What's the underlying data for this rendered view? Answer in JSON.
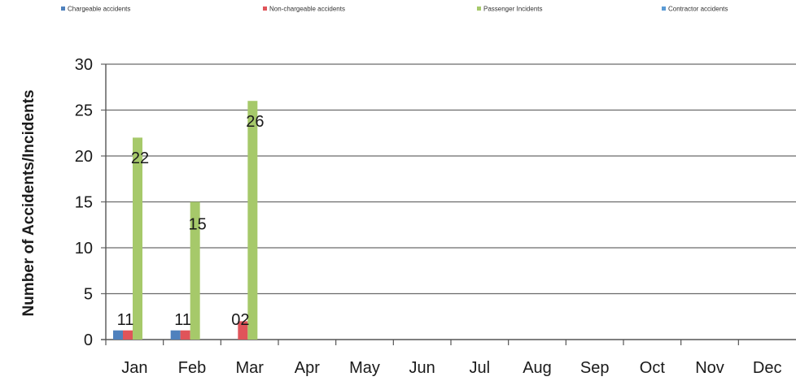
{
  "chart_data": {
    "type": "bar",
    "ylabel": "Number of Accidents/Incidents",
    "ylim": [
      0,
      30
    ],
    "yticks": [
      0,
      5,
      10,
      15,
      20,
      25,
      30
    ],
    "grid": true,
    "legend_position": "top",
    "categories": [
      "Jan",
      "Feb",
      "Mar",
      "Apr",
      "May",
      "Jun",
      "Jul",
      "Aug",
      "Sep",
      "Oct",
      "Nov",
      "Dec"
    ],
    "series": [
      {
        "name": "Chargeable accidents",
        "color": "#4f81bd",
        "values": [
          1,
          1,
          0,
          null,
          null,
          null,
          null,
          null,
          null,
          null,
          null,
          null
        ]
      },
      {
        "name": "Non-chargeable accidents",
        "color": "#e0545a",
        "values": [
          1,
          1,
          2,
          null,
          null,
          null,
          null,
          null,
          null,
          null,
          null,
          null
        ]
      },
      {
        "name": "Passenger Incidents",
        "color": "#a6c96a",
        "values": [
          22,
          15,
          26,
          null,
          null,
          null,
          null,
          null,
          null,
          null,
          null,
          null
        ]
      },
      {
        "name": "Contractor accidents",
        "color": "#5b9bd5",
        "values": [
          null,
          null,
          null,
          null,
          null,
          null,
          null,
          null,
          null,
          null,
          null,
          null
        ]
      }
    ],
    "data_labels": [
      {
        "category": "Jan",
        "text": "11"
      },
      {
        "category": "Jan",
        "text": "22"
      },
      {
        "category": "Feb",
        "text": "11"
      },
      {
        "category": "Feb",
        "text": "15"
      },
      {
        "category": "Mar",
        "text": "02"
      },
      {
        "category": "Mar",
        "text": "26"
      }
    ]
  }
}
